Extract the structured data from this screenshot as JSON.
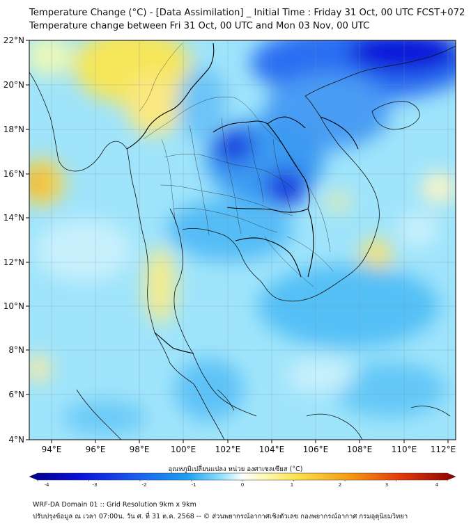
{
  "title_line1": "Temperature Change (°C) - [Data Assimilation] _ Initial Time : Friday 31 Oct, 00 UTC FCST+072",
  "title_line2": "Temperature change between Fri 31 Oct, 00 UTC and Mon 03 Nov, 00 UTC",
  "map": {
    "lat_ticks": [
      "22°N",
      "20°N",
      "18°N",
      "16°N",
      "14°N",
      "12°N",
      "10°N",
      "8°N",
      "6°N",
      "4°N"
    ],
    "lon_ticks": [
      "94°E",
      "96°E",
      "98°E",
      "100°E",
      "102°E",
      "104°E",
      "106°E",
      "108°E",
      "110°E",
      "112°E"
    ],
    "colors": {
      "strong_cooling": "#0a10d8",
      "cooling": "#1ea0f0",
      "light_cooling": "#8fe0fb",
      "neutral": "#ffffff",
      "warming": "#fbe04a",
      "strong_warming": "#c80000"
    }
  },
  "colorbar": {
    "label": "อุณหภูมิเปลี่ยนแปลง หน่วย องศาเซลเซียส (°C)",
    "ticks": [
      "-4",
      "-3",
      "-2",
      "-1",
      "0",
      "1",
      "2",
      "3",
      "4"
    ],
    "min": -4,
    "max": 4
  },
  "footer_line1": "WRF-DA Domain 01 :: Grid Resolution 9km x 9km",
  "footer_line2": "ปรับปรุงข้อมูล ณ เวลา 07:00น. วัน ศ. ที่ 31 ต.ค. 2568 -- © ส่วนพยากรณ์อากาศเชิงตัวเลข กองพยากรณ์อากาศ กรมอุตุนิยมวิทยา"
}
